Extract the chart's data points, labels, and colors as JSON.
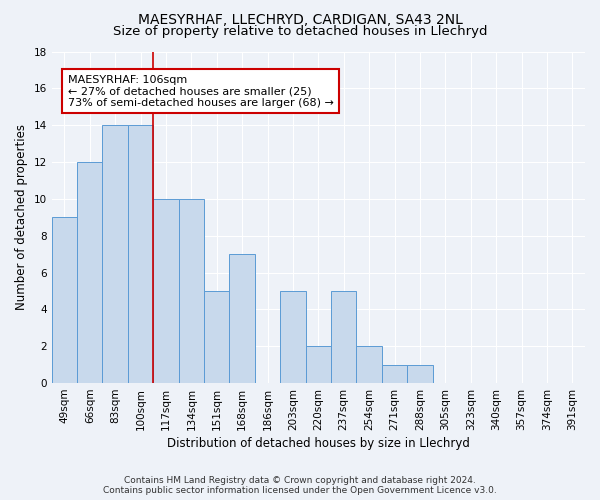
{
  "title1": "MAESYRHAF, LLECHRYD, CARDIGAN, SA43 2NL",
  "title2": "Size of property relative to detached houses in Llechryd",
  "xlabel": "Distribution of detached houses by size in Llechryd",
  "ylabel": "Number of detached properties",
  "categories": [
    "49sqm",
    "66sqm",
    "83sqm",
    "100sqm",
    "117sqm",
    "134sqm",
    "151sqm",
    "168sqm",
    "186sqm",
    "203sqm",
    "220sqm",
    "237sqm",
    "254sqm",
    "271sqm",
    "288sqm",
    "305sqm",
    "323sqm",
    "340sqm",
    "357sqm",
    "374sqm",
    "391sqm"
  ],
  "values": [
    9,
    12,
    14,
    14,
    10,
    10,
    5,
    7,
    0,
    5,
    2,
    5,
    2,
    1,
    1,
    0,
    0,
    0,
    0,
    0,
    0
  ],
  "bar_color": "#c8d9ec",
  "bar_edge_color": "#5b9bd5",
  "ylim": [
    0,
    18
  ],
  "yticks": [
    0,
    2,
    4,
    6,
    8,
    10,
    12,
    14,
    16,
    18
  ],
  "property_bin_index": 3,
  "annotation_text": "MAESYRHAF: 106sqm\n← 27% of detached houses are smaller (25)\n73% of semi-detached houses are larger (68) →",
  "annotation_box_color": "#ffffff",
  "annotation_box_edge_color": "#cc0000",
  "vline_color": "#cc0000",
  "footer_line1": "Contains HM Land Registry data © Crown copyright and database right 2024.",
  "footer_line2": "Contains public sector information licensed under the Open Government Licence v3.0.",
  "background_color": "#eef2f8",
  "grid_color": "#ffffff",
  "title1_fontsize": 10,
  "title2_fontsize": 9.5,
  "axis_label_fontsize": 8.5,
  "tick_fontsize": 7.5,
  "annotation_fontsize": 8,
  "footer_fontsize": 6.5
}
